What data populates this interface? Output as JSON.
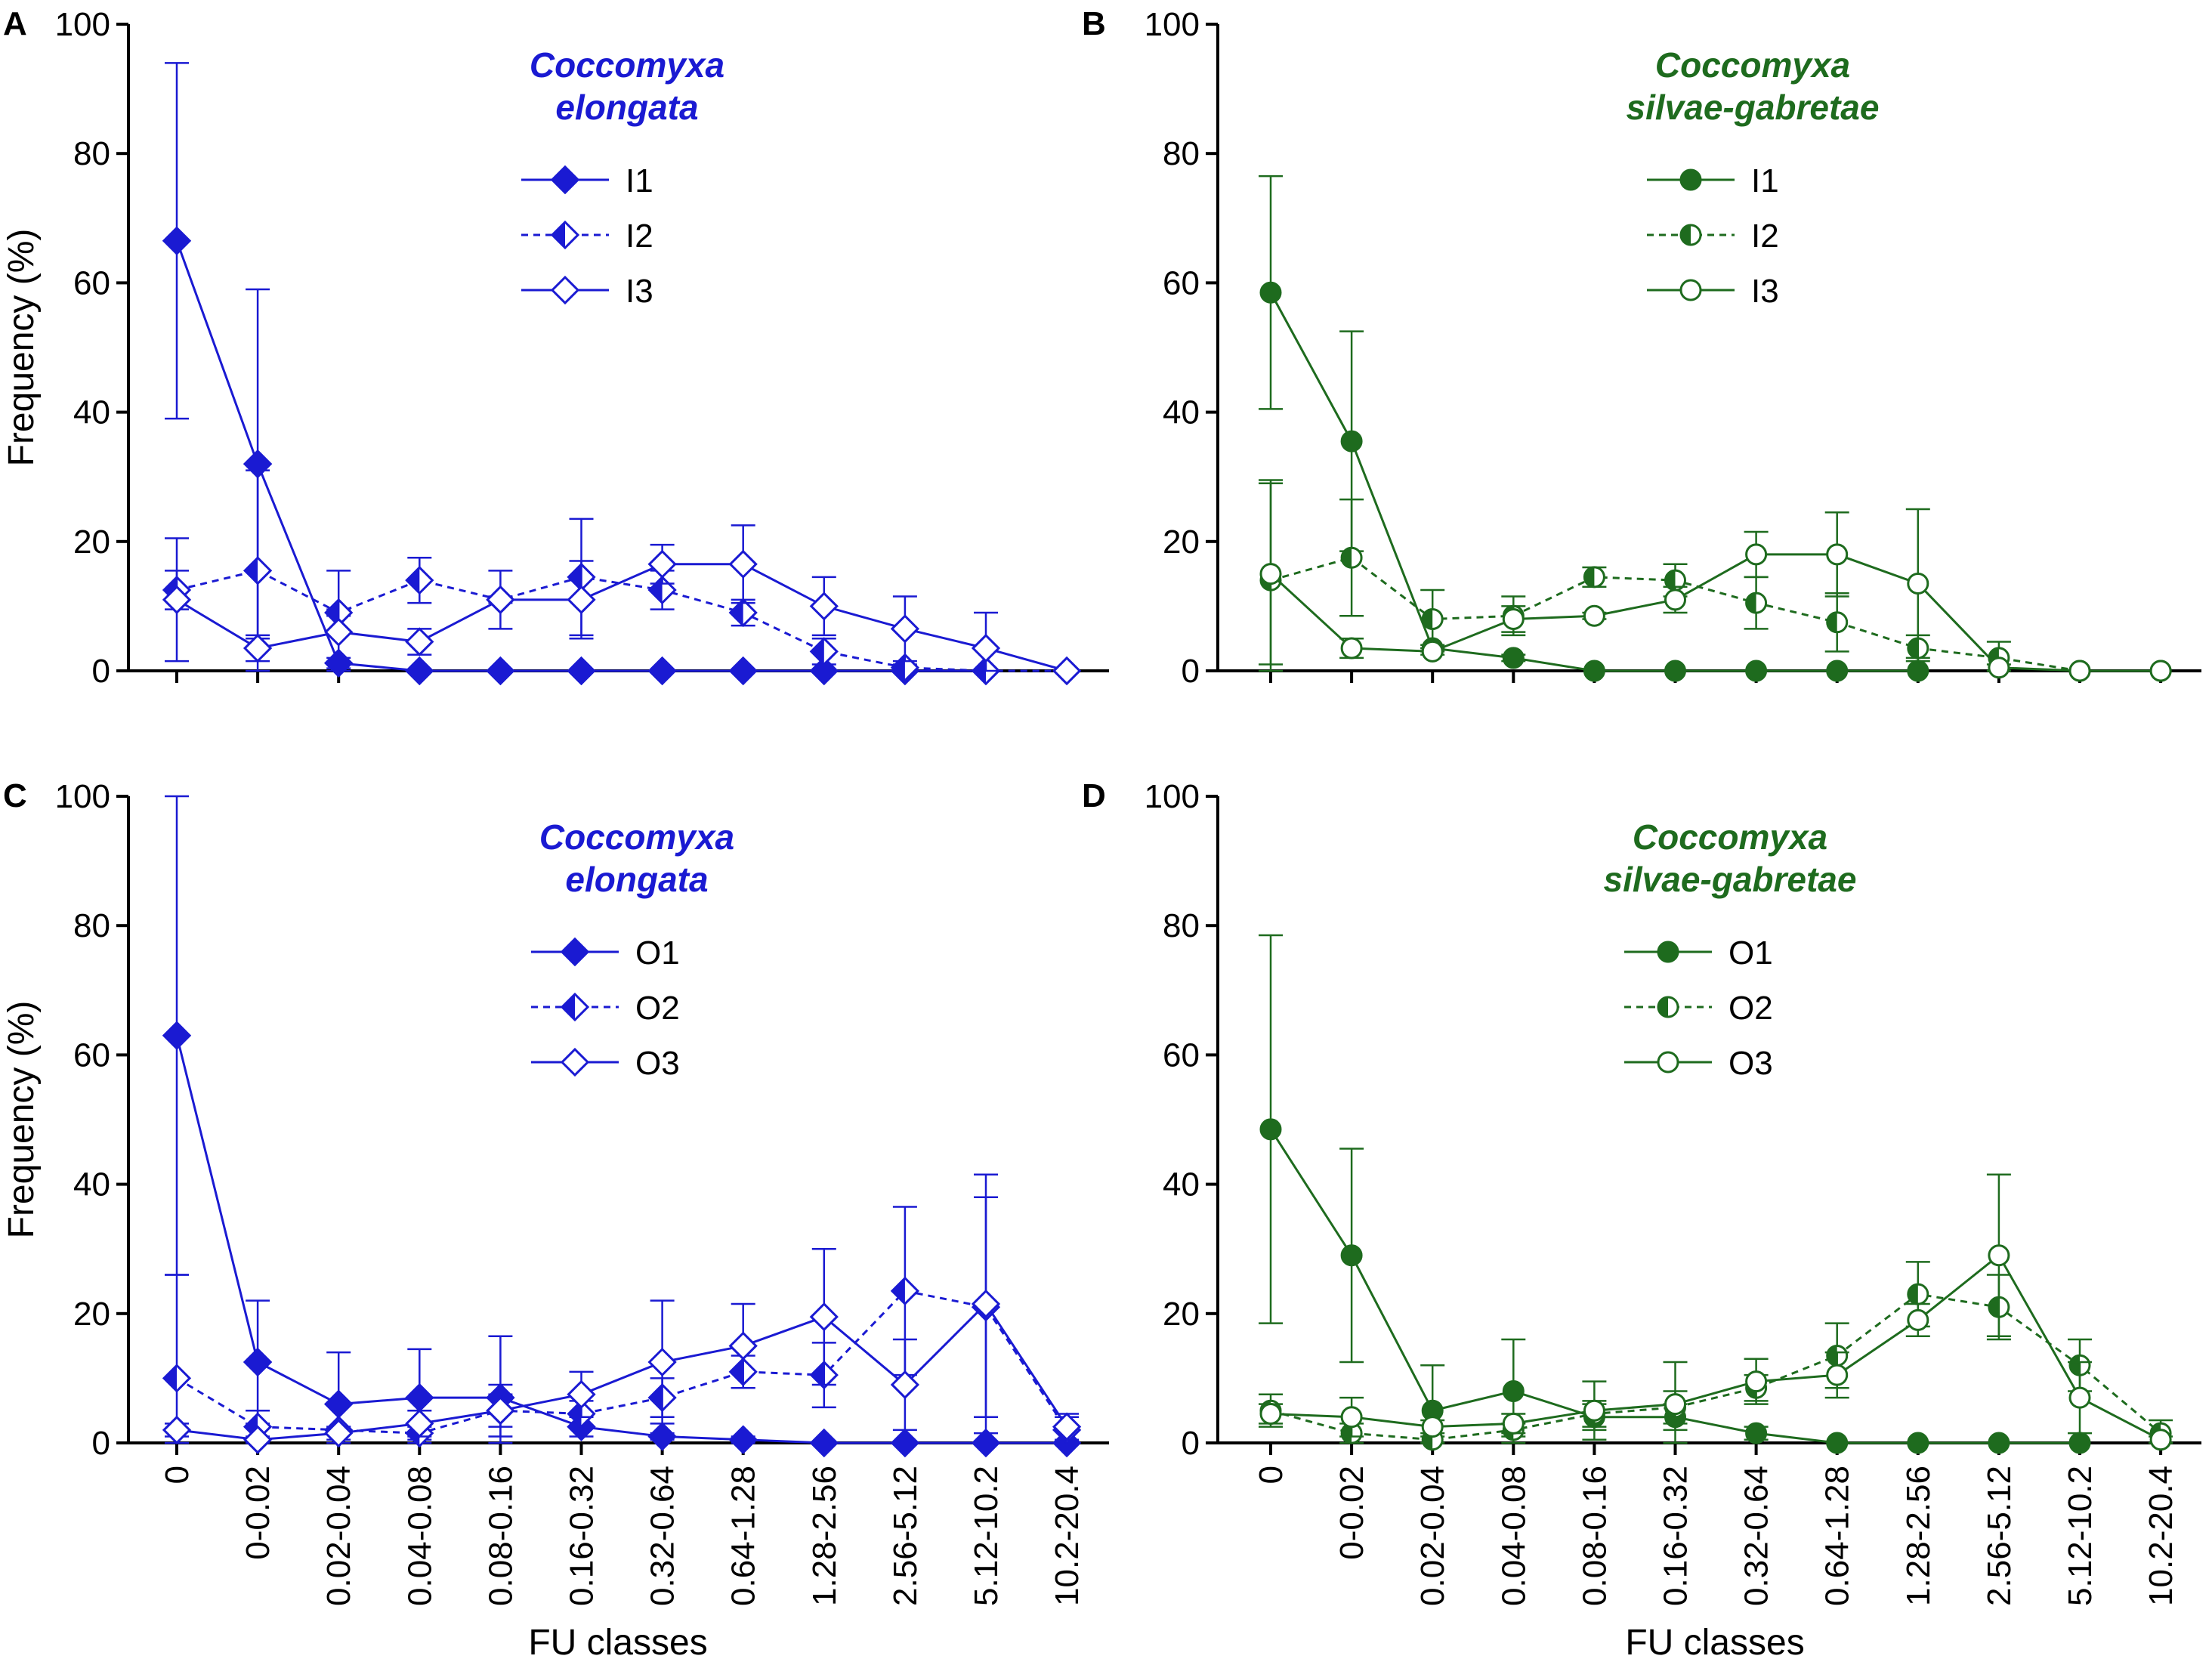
{
  "figure": {
    "ylabel": "Frequency (%)",
    "xlabel": "FU classes",
    "colors": {
      "blue": "#1a1ad2",
      "green": "#1e6b1e",
      "axis": "#000000"
    }
  },
  "chart_data": [
    {
      "panel": "A",
      "type": "line",
      "title_line1": "Coccomyxa",
      "title_line2": "elongata",
      "color": "#1a1ad2",
      "marker": "diamond",
      "categories": [
        "0",
        "0-0.02",
        "0.02-0.04",
        "0.04-0.08",
        "0.08-0.16",
        "0.16-0.32",
        "0.32-0.64",
        "0.64-1.28",
        "1.28-2.56",
        "2.56-5.12",
        "5.12-10.2",
        "10.2-20.4"
      ],
      "ylim": [
        0,
        100
      ],
      "yticks": [
        "0",
        "20",
        "40",
        "60",
        "80",
        "100"
      ],
      "show_x_labels": false,
      "series": [
        {
          "name": "I1",
          "fill": "full",
          "dashed": false,
          "values": [
            66.5,
            32,
            1.2,
            0,
            0,
            0,
            0,
            0,
            0,
            0,
            0,
            null
          ],
          "err": [
            27.5,
            27,
            0.8,
            0,
            0,
            0,
            0,
            0,
            0,
            0,
            0,
            0
          ]
        },
        {
          "name": "I2",
          "fill": "half",
          "dashed": true,
          "values": [
            12.5,
            15.5,
            9,
            14,
            11,
            14.5,
            12.5,
            9,
            3,
            0.5,
            0,
            0
          ],
          "err": [
            3,
            15.5,
            0.5,
            3.5,
            0.5,
            9,
            3,
            2,
            2,
            0.5,
            0,
            0
          ]
        },
        {
          "name": "I3",
          "fill": "open",
          "dashed": false,
          "values": [
            11,
            3.5,
            6,
            4.5,
            11,
            11,
            16.5,
            16.5,
            10,
            6.5,
            3.5,
            0
          ],
          "err": [
            9.5,
            2,
            9.5,
            2,
            4.5,
            6,
            3,
            6,
            4.5,
            5,
            5.5,
            0
          ]
        }
      ]
    },
    {
      "panel": "B",
      "type": "line",
      "title_line1": "Coccomyxa",
      "title_line2": "silvae-gabretae",
      "color": "#1e6b1e",
      "marker": "circle",
      "categories": [
        "0",
        "0-0.02",
        "0.02-0.04",
        "0.04-0.08",
        "0.08-0.16",
        "0.16-0.32",
        "0.32-0.64",
        "0.64-1.28",
        "1.28-2.56",
        "2.56-5.12",
        "5.12-10.2",
        "10.2-20.4"
      ],
      "ylim": [
        0,
        100
      ],
      "yticks": [
        "0",
        "20",
        "40",
        "60",
        "80",
        "100"
      ],
      "show_x_labels": false,
      "series": [
        {
          "name": "I1",
          "fill": "full",
          "dashed": false,
          "values": [
            58.5,
            35.5,
            3.5,
            2,
            0,
            0,
            0,
            0,
            0,
            null,
            null,
            null
          ],
          "err": [
            18,
            17,
            0.5,
            0.5,
            0,
            0,
            0,
            0,
            0,
            0,
            0,
            0
          ]
        },
        {
          "name": "I2",
          "fill": "half",
          "dashed": true,
          "values": [
            14,
            17.5,
            8,
            8.5,
            14.5,
            14,
            10.5,
            7.5,
            3.5,
            2,
            0,
            0
          ],
          "err": [
            15.5,
            9,
            4.5,
            3,
            1.5,
            2.5,
            4,
            4.5,
            2,
            2.5,
            0,
            0
          ]
        },
        {
          "name": "I3",
          "fill": "open",
          "dashed": false,
          "values": [
            15,
            3.5,
            3,
            8,
            8.5,
            11,
            18,
            18,
            13.5,
            0.5,
            0,
            0
          ],
          "err": [
            14,
            1.5,
            0.5,
            2,
            0.5,
            2,
            3.5,
            6.5,
            11.5,
            0.5,
            0,
            0
          ]
        }
      ]
    },
    {
      "panel": "C",
      "type": "line",
      "title_line1": "Coccomyxa",
      "title_line2": "elongata",
      "color": "#1a1ad2",
      "marker": "diamond",
      "categories": [
        "0",
        "0-0.02",
        "0.02-0.04",
        "0.04-0.08",
        "0.08-0.16",
        "0.16-0.32",
        "0.32-0.64",
        "0.64-1.28",
        "1.28-2.56",
        "2.56-5.12",
        "5.12-10.2",
        "10.2-20.4"
      ],
      "ylim": [
        0,
        100
      ],
      "yticks": [
        "0",
        "20",
        "40",
        "60",
        "80",
        "100"
      ],
      "show_x_labels": true,
      "series": [
        {
          "name": "O1",
          "fill": "full",
          "dashed": false,
          "values": [
            63,
            12.5,
            6,
            7,
            7,
            2.5,
            1,
            0.5,
            0,
            0,
            0,
            0
          ],
          "err": [
            37,
            9.5,
            8,
            7.5,
            9.5,
            1.5,
            0.5,
            0.5,
            0,
            0,
            0,
            0
          ]
        },
        {
          "name": "O2",
          "fill": "half",
          "dashed": true,
          "values": [
            10,
            2.5,
            2,
            1.5,
            5,
            4.5,
            7,
            11,
            10.5,
            23.5,
            21,
            2
          ],
          "err": [
            16,
            2.5,
            0.5,
            1,
            2.5,
            2,
            3,
            2.5,
            5,
            13,
            17,
            2
          ]
        },
        {
          "name": "O3",
          "fill": "open",
          "dashed": false,
          "values": [
            2,
            0.5,
            1.5,
            3,
            5,
            7.5,
            12.5,
            15,
            19.5,
            9,
            21.5,
            2.5
          ],
          "err": [
            1,
            0.5,
            1,
            2,
            4,
            3.5,
            9.5,
            6.5,
            10.5,
            7,
            20,
            2
          ]
        }
      ]
    },
    {
      "panel": "D",
      "type": "line",
      "title_line1": "Coccomyxa",
      "title_line2": "silvae-gabretae",
      "color": "#1e6b1e",
      "marker": "circle",
      "categories": [
        "0",
        "0-0.02",
        "0.02-0.04",
        "0.04-0.08",
        "0.08-0.16",
        "0.16-0.32",
        "0.32-0.64",
        "0.64-1.28",
        "1.28-2.56",
        "2.56-5.12",
        "5.12-10.2",
        "10.2-20.4"
      ],
      "ylim": [
        0,
        100
      ],
      "yticks": [
        "0",
        "20",
        "40",
        "60",
        "80",
        "100"
      ],
      "show_x_labels": true,
      "series": [
        {
          "name": "O1",
          "fill": "full",
          "dashed": false,
          "values": [
            48.5,
            29,
            5,
            8,
            4,
            4,
            1.5,
            0,
            0,
            0,
            0,
            null
          ],
          "err": [
            30,
            16.5,
            7,
            8,
            2,
            2,
            1,
            0,
            0,
            0,
            0,
            0
          ]
        },
        {
          "name": "O2",
          "fill": "half",
          "dashed": true,
          "values": [
            5,
            1.5,
            0.5,
            2,
            4.5,
            5.5,
            8.5,
            13.5,
            23,
            21,
            12,
            1.5
          ],
          "err": [
            2.5,
            1.5,
            0.5,
            1,
            2,
            2.5,
            2,
            5,
            5,
            5,
            4,
            2
          ]
        },
        {
          "name": "O3",
          "fill": "open",
          "dashed": false,
          "values": [
            4.5,
            4,
            2.5,
            3,
            5,
            6,
            9.5,
            10.5,
            19,
            29,
            7,
            0.5
          ],
          "err": [
            1.5,
            3,
            1,
            1.5,
            4.5,
            6.5,
            3.5,
            3.5,
            2.5,
            12.5,
            5.5,
            0.5
          ]
        }
      ]
    }
  ]
}
